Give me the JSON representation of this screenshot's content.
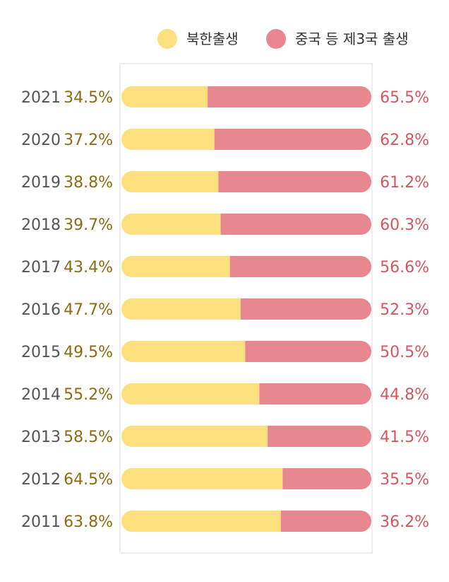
{
  "chart_data": {
    "type": "bar",
    "stacked": true,
    "orientation": "horizontal",
    "percent_stacked": true,
    "legend_position": "top-right",
    "colors": {
      "nk": "#fde07e",
      "other": "#e8878f",
      "nk_text": "#8a6d12",
      "other_text": "#d2575f"
    },
    "series": [
      {
        "name": "북한출생",
        "values": [
          34.5,
          37.2,
          38.8,
          39.7,
          43.4,
          47.7,
          49.5,
          55.2,
          58.5,
          64.5,
          63.8
        ]
      },
      {
        "name": "중국 등 제3국 출생",
        "values": [
          65.5,
          62.8,
          61.2,
          60.3,
          56.6,
          52.3,
          50.5,
          44.8,
          41.5,
          35.5,
          36.2
        ]
      }
    ],
    "categories": [
      "2021",
      "2020",
      "2019",
      "2018",
      "2017",
      "2016",
      "2015",
      "2014",
      "2013",
      "2012",
      "2011"
    ],
    "nk_labels": [
      "34.5%",
      "37.2%",
      "38.8%",
      "39.7%",
      "43.4%",
      "47.7%",
      "49.5%",
      "55.2%",
      "58.5%",
      "64.5%",
      "63.8%"
    ],
    "other_labels": [
      "65.5%",
      "62.8%",
      "61.2%",
      "60.3%",
      "56.6%",
      "52.3%",
      "50.5%",
      "44.8%",
      "41.5%",
      "35.5%",
      "36.2%"
    ],
    "xlim": [
      0,
      100
    ]
  }
}
